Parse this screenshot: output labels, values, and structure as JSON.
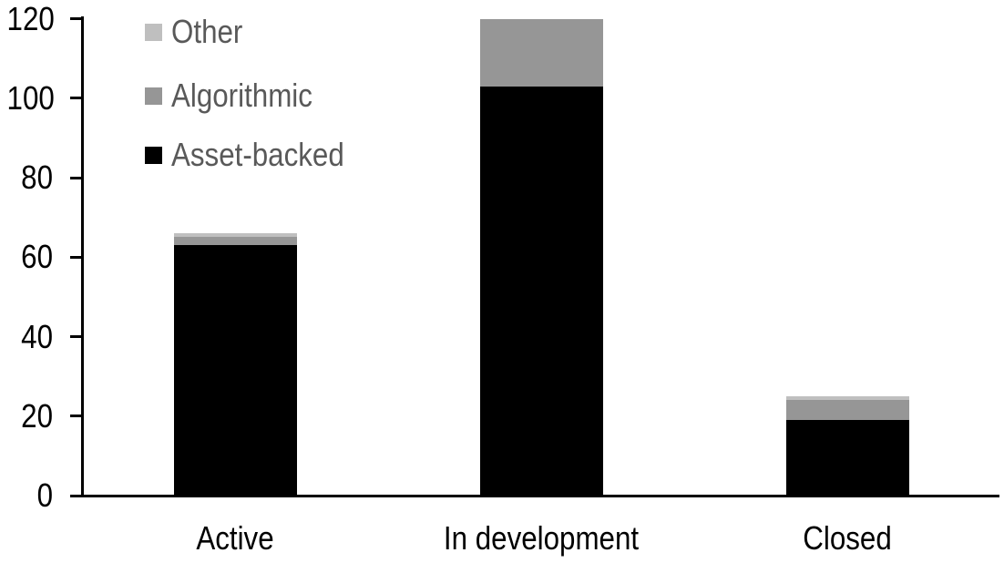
{
  "chart_data": {
    "type": "bar",
    "subtype": "stacked-vertical",
    "title": "",
    "xlabel": "",
    "ylabel": "",
    "categories": [
      "Active",
      "In development",
      "Closed"
    ],
    "series": [
      {
        "name": "Asset-backed",
        "color": "#000000",
        "values": [
          63,
          103,
          19
        ]
      },
      {
        "name": "Algorithmic",
        "color": "#969696",
        "values": [
          2,
          17,
          5
        ]
      },
      {
        "name": "Other",
        "color": "#BFBFBF",
        "values": [
          1,
          0,
          1
        ]
      }
    ],
    "totals": [
      66,
      120,
      25
    ],
    "y_ticks": [
      0,
      20,
      40,
      60,
      80,
      100,
      120
    ],
    "ylim": [
      0,
      120
    ],
    "grid": false,
    "background": "#FFFFFF",
    "axis_color": "#000000",
    "legend": {
      "position": "top-left-inside",
      "order": [
        "Other",
        "Algorithmic",
        "Asset-backed"
      ],
      "text_color": "#595959"
    }
  }
}
